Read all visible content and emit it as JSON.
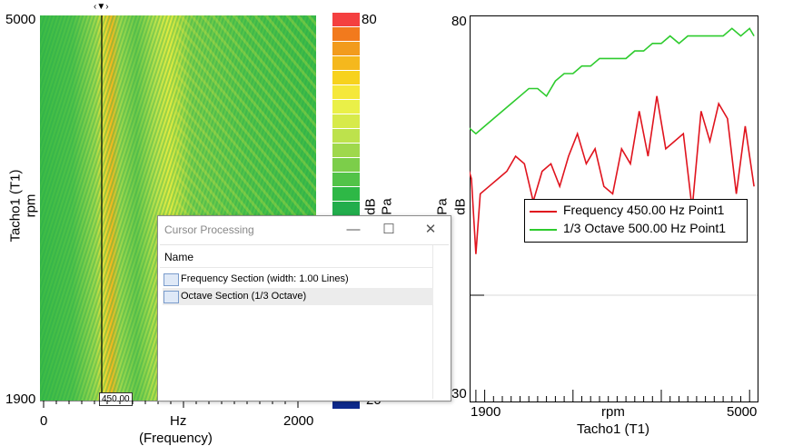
{
  "spectrogram": {
    "y_top": "5000",
    "y_bottom": "1900",
    "y_title": "Tacho1 (T1)",
    "y_unit": "rpm",
    "x_ticks": [
      "0",
      "Hz",
      "2000"
    ],
    "x_title": "(Frequency)",
    "cursor_readout": "450.00",
    "colorbar_top": "80",
    "colorbar_bottom": "-20",
    "colorbar_unit_a": "dB",
    "colorbar_unit_b": "Pa",
    "colorbar_colors": [
      "#f44040",
      "#f27a1d",
      "#f29b1d",
      "#f5b81d",
      "#f7d21d",
      "#f5e83a",
      "#eaf048",
      "#d7ea4a",
      "#bde24c",
      "#9fd84c",
      "#7cce4a",
      "#52c348",
      "#2eb846",
      "#22ad4c",
      "#1fa64f"
    ]
  },
  "line_chart": {
    "y_top": "80",
    "y_bottom": "30",
    "y_unit_a": "Pa",
    "y_unit_b": "dB",
    "x_left": "1900",
    "x_unit": "rpm",
    "x_right": "5000",
    "x_title": "Tacho1 (T1)",
    "legend": [
      {
        "name": "Frequency 450.00 Hz Point1",
        "color": "#e0141e"
      },
      {
        "name": "1/3 Octave 500.00 Hz Point1",
        "color": "#2ecb2e"
      }
    ]
  },
  "chart_data": {
    "type": "line",
    "xlabel": "Tacho1 (T1)",
    "ylabel": "dB",
    "xlim": [
      1900,
      5000
    ],
    "ylim": [
      30,
      80
    ],
    "series": [
      {
        "name": "Frequency 450.00 Hz Point1",
        "x": [
          1800,
          1850,
          1900,
          1950,
          2050,
          2150,
          2250,
          2350,
          2450,
          2550,
          2650,
          2750,
          2850,
          2950,
          3050,
          3150,
          3250,
          3350,
          3450,
          3550,
          3650,
          3750,
          3850,
          3950,
          4050,
          4150,
          4250,
          4350,
          4450,
          4550,
          4650,
          4750,
          4850,
          4950,
          5050
        ],
        "y": [
          61,
          59,
          49,
          57,
          58,
          59,
          60,
          62,
          61,
          56,
          60,
          61,
          58,
          62,
          65,
          61,
          63,
          58,
          57,
          63,
          61,
          68,
          62,
          70,
          63,
          64,
          65,
          55,
          68,
          64,
          69,
          67,
          57,
          66,
          58
        ]
      },
      {
        "name": "1/3 Octave 500.00 Hz Point1",
        "x": [
          1800,
          1900,
          2000,
          2100,
          2200,
          2300,
          2400,
          2500,
          2600,
          2700,
          2800,
          2900,
          3000,
          3100,
          3200,
          3300,
          3400,
          3500,
          3600,
          3700,
          3800,
          3900,
          4000,
          4100,
          4200,
          4300,
          4400,
          4500,
          4600,
          4700,
          4800,
          4900,
          5000,
          5050
        ],
        "y": [
          66,
          65,
          66,
          67,
          68,
          69,
          70,
          71,
          71,
          70,
          72,
          73,
          73,
          74,
          74,
          75,
          75,
          75,
          75,
          76,
          76,
          77,
          77,
          78,
          77,
          78,
          78,
          78,
          78,
          78,
          79,
          78,
          79,
          78
        ]
      }
    ]
  },
  "dialog": {
    "title": "Cursor Processing",
    "minimize_glyph": "—",
    "maximize_glyph": "☐",
    "close_glyph": "✕",
    "column_header": "Name",
    "items": [
      {
        "label": "Frequency Section (width: 1.00 Lines)"
      },
      {
        "label": "Octave Section (1/3 Octave)"
      }
    ]
  }
}
